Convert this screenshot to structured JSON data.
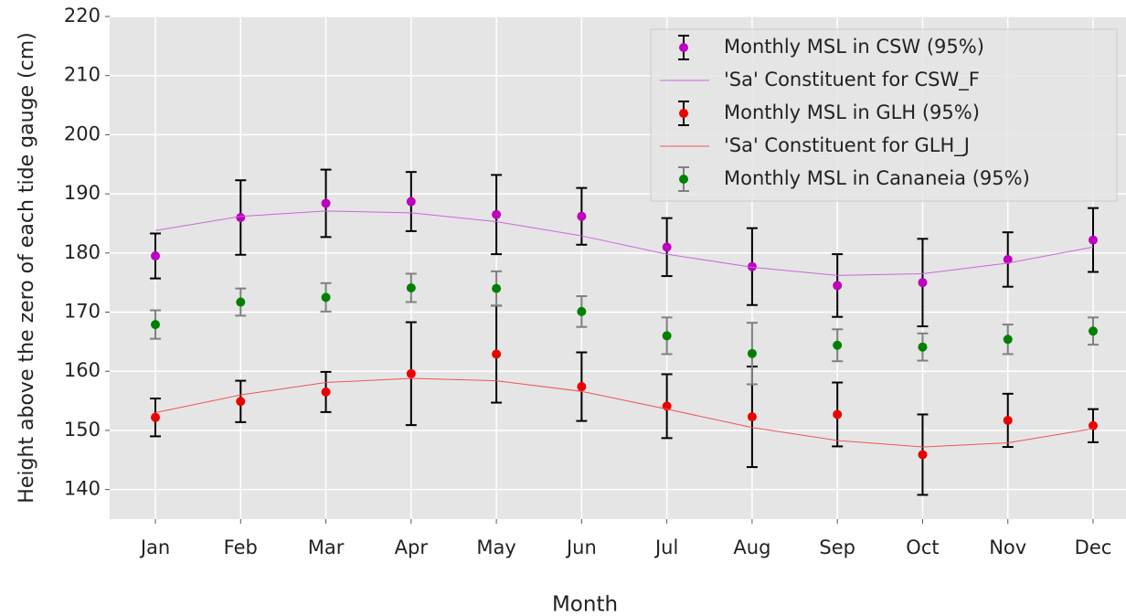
{
  "chart_data": {
    "type": "errorbar",
    "x_label": "Month",
    "y_label": "Height above the zero of each tide gauge (cm)",
    "categories": [
      "Jan",
      "Feb",
      "Mar",
      "Apr",
      "May",
      "Jun",
      "Jul",
      "Aug",
      "Sep",
      "Oct",
      "Nov",
      "Dec"
    ],
    "ylim": [
      135,
      220
    ],
    "yticks": [
      140,
      150,
      160,
      170,
      180,
      190,
      200,
      210,
      220
    ],
    "grid": true,
    "legend": "upper right",
    "series": [
      {
        "name": "Monthly MSL in CSW (95%)",
        "type": "errorbar",
        "color": "#bf00bf",
        "error_color": "#000000",
        "values": [
          179.5,
          186.0,
          188.4,
          188.7,
          186.5,
          186.2,
          181.0,
          177.7,
          174.5,
          175.0,
          178.9,
          182.2
        ],
        "errors": [
          3.8,
          6.3,
          5.7,
          5.0,
          6.7,
          4.8,
          4.9,
          6.5,
          5.3,
          7.4,
          4.6,
          5.4
        ]
      },
      {
        "name": "'Sa' Constituent for CSW_F",
        "type": "line",
        "color": "#cc66dd",
        "values": [
          183.8,
          186.2,
          187.1,
          186.8,
          185.3,
          182.9,
          179.8,
          177.6,
          176.2,
          176.5,
          178.3,
          181.0
        ]
      },
      {
        "name": "Monthly MSL in GLH (95%)",
        "type": "errorbar",
        "color": "#ee0000",
        "error_color": "#000000",
        "values": [
          152.2,
          154.9,
          156.5,
          159.6,
          162.9,
          157.4,
          154.1,
          152.3,
          152.7,
          145.9,
          151.7,
          150.8
        ],
        "errors": [
          3.2,
          3.5,
          3.4,
          8.7,
          8.2,
          5.8,
          5.4,
          8.5,
          5.4,
          6.8,
          4.5,
          2.8
        ]
      },
      {
        "name": "'Sa' Constituent for GLH_J",
        "type": "line",
        "color": "#ee5555",
        "values": [
          153.0,
          156.0,
          158.1,
          158.8,
          158.4,
          156.6,
          153.6,
          150.5,
          148.3,
          147.2,
          147.9,
          150.3
        ]
      },
      {
        "name": "Monthly MSL in Cananeia (95%)",
        "type": "errorbar",
        "color": "#008000",
        "error_color": "#808080",
        "values": [
          167.9,
          171.7,
          172.5,
          174.1,
          174.0,
          170.1,
          166.0,
          163.0,
          164.4,
          164.1,
          165.4,
          166.8
        ],
        "errors": [
          2.4,
          2.3,
          2.4,
          2.4,
          2.9,
          2.6,
          3.1,
          5.2,
          2.7,
          2.3,
          2.5,
          2.3
        ]
      }
    ]
  }
}
